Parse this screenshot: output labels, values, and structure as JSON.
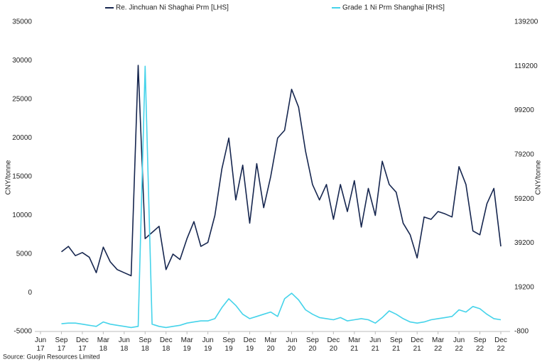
{
  "chart_data": {
    "type": "line",
    "x": [
      "Jun 17",
      "Jul 17",
      "Aug 17",
      "Sep 17",
      "Oct 17",
      "Nov 17",
      "Dec 17",
      "Jan 18",
      "Feb 18",
      "Mar 18",
      "Apr 18",
      "May 18",
      "Jun 18",
      "Jul 18",
      "Aug 18",
      "Sep 18",
      "Oct 18",
      "Nov 18",
      "Dec 18",
      "Jan 19",
      "Feb 19",
      "Mar 19",
      "Apr 19",
      "May 19",
      "Jun 19",
      "Jul 19",
      "Aug 19",
      "Sep 19",
      "Oct 19",
      "Nov 19",
      "Dec 19",
      "Jan 20",
      "Feb 20",
      "Mar 20",
      "Apr 20",
      "May 20",
      "Jun 20",
      "Jul 20",
      "Aug 20",
      "Sep 20",
      "Oct 20",
      "Nov 20",
      "Dec 20",
      "Jan 21",
      "Feb 21",
      "Mar 21",
      "Apr 21",
      "May 21",
      "Jun 21",
      "Jul 21",
      "Aug 21",
      "Sep 21",
      "Oct 21",
      "Nov 21",
      "Dec 21",
      "Jan 22",
      "Feb 22",
      "Mar 22",
      "Apr 22",
      "May 22",
      "Jun 22",
      "Jul 22",
      "Aug 22",
      "Sep 22",
      "Oct 22",
      "Nov 22",
      "Dec 22"
    ],
    "series": [
      {
        "name": "Re. Jinchuan Ni Shaghai Prm [LHS]",
        "color": "#16264f",
        "axis": "y",
        "values": [
          null,
          null,
          null,
          5300,
          6000,
          4800,
          5200,
          4600,
          2600,
          5900,
          4000,
          3000,
          2600,
          2200,
          29400,
          7000,
          7800,
          8600,
          3000,
          5000,
          4300,
          7000,
          9200,
          6000,
          6500,
          10000,
          16000,
          20000,
          12000,
          16500,
          9000,
          16700,
          11000,
          15000,
          20000,
          21000,
          26300,
          24000,
          18300,
          14000,
          12000,
          14000,
          9500,
          14000,
          10500,
          14500,
          8500,
          13500,
          10000,
          17000,
          14000,
          13000,
          9000,
          7500,
          4500,
          9800,
          9500,
          10500,
          10200,
          9800,
          16300,
          14000,
          8000,
          7500,
          11500,
          13500,
          6000
        ]
      },
      {
        "name": "Grade 1 Ni Prm Shanghai [RHS]",
        "color": "#45d3ea",
        "axis": "y2",
        "values": [
          null,
          null,
          null,
          2700,
          3000,
          3000,
          2500,
          2000,
          1500,
          3500,
          2500,
          2000,
          1500,
          1000,
          1500,
          119200,
          2500,
          1500,
          1000,
          1500,
          2000,
          3000,
          3500,
          4000,
          4000,
          5000,
          10000,
          14000,
          11000,
          7000,
          5000,
          6000,
          7000,
          8000,
          6000,
          14000,
          16500,
          13500,
          9000,
          7000,
          5500,
          5000,
          4500,
          5500,
          4000,
          4500,
          5000,
          4500,
          3000,
          5500,
          8500,
          7000,
          5000,
          3500,
          3000,
          3500,
          4500,
          5000,
          5500,
          6000,
          9000,
          8000,
          10500,
          9500,
          7000,
          5000,
          4500
        ]
      }
    ],
    "xticks": [
      "Jun 17",
      "Sep 17",
      "Dec 17",
      "Mar 18",
      "Jun 18",
      "Sep 18",
      "Dec 18",
      "Mar 19",
      "Jun 19",
      "Sep 19",
      "Dec 19",
      "Mar 20",
      "Jun 20",
      "Sep 20",
      "Dec 20",
      "Mar 21",
      "Jun 21",
      "Sep 21",
      "Dec 21",
      "Mar 22",
      "Jun 22",
      "Sep 22",
      "Dec 22"
    ],
    "ylim": [
      -5000,
      35000
    ],
    "yticks": [
      -5000,
      0,
      5000,
      10000,
      15000,
      20000,
      25000,
      30000,
      35000
    ],
    "y2lim": [
      -800,
      139200
    ],
    "y2ticks": [
      -800,
      19200,
      39200,
      59200,
      79200,
      99200,
      119200,
      139200
    ],
    "ylabel": "CNY/tonne",
    "y2label": "CNY/tonne",
    "source": "Source: Guojin Resources Limited",
    "grid": false
  }
}
